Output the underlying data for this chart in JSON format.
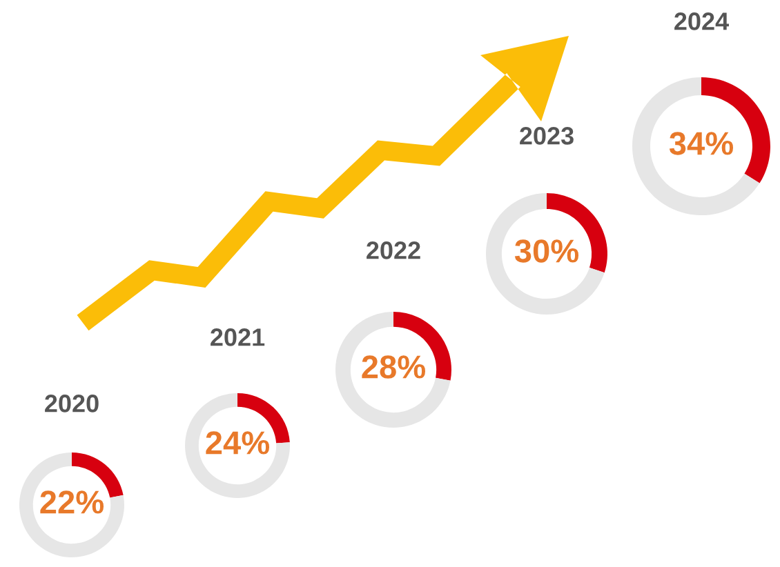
{
  "chart_data": [
    {
      "type": "donut",
      "title": "2020",
      "categories": [
        null,
        null
      ],
      "values": [
        22,
        78
      ],
      "colors": [
        "#d7000f",
        "#e6e6e6"
      ],
      "value_labels": [
        "22%",
        null
      ]
    },
    {
      "type": "donut",
      "title": "2021",
      "categories": [
        null,
        null
      ],
      "values": [
        24,
        76
      ],
      "colors": [
        "#d7000f",
        "#e6e6e6"
      ],
      "value_labels": [
        "24%",
        null
      ]
    },
    {
      "type": "donut",
      "title": "2022",
      "categories": [
        null,
        null
      ],
      "values": [
        28,
        72
      ],
      "colors": [
        "#d7000f",
        "#e6e6e6"
      ],
      "value_labels": [
        "28%",
        null
      ]
    },
    {
      "type": "donut",
      "title": "2023",
      "categories": [
        null,
        null
      ],
      "values": [
        30,
        70
      ],
      "colors": [
        "#d7000f",
        "#e6e6e6"
      ],
      "value_labels": [
        "30%",
        null
      ]
    },
    {
      "type": "donut",
      "title": "2024",
      "categories": [
        null,
        null
      ],
      "values": [
        34,
        66
      ],
      "colors": [
        "#d7000f",
        "#e6e6e6"
      ],
      "value_labels": [
        "34%",
        null
      ]
    }
  ]
}
